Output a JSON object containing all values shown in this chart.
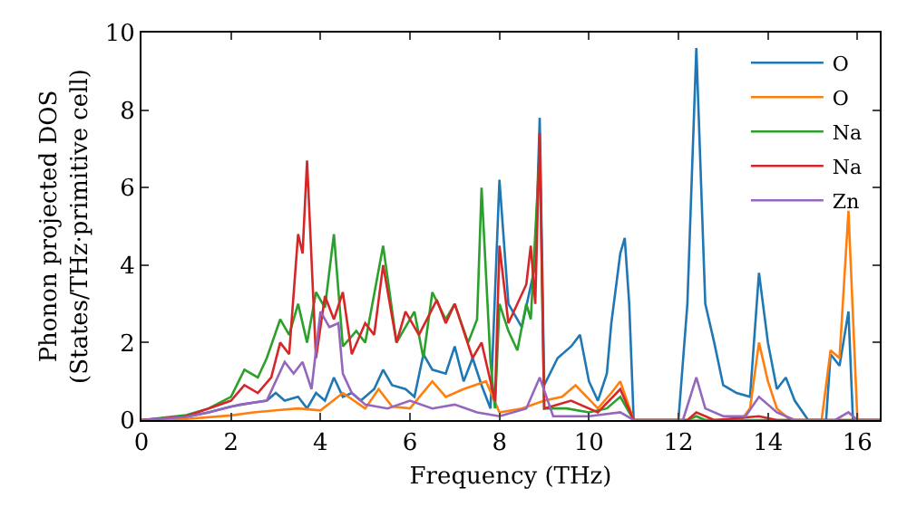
{
  "chart_data": {
    "type": "line",
    "xlabel": "Frequency (THz)",
    "ylabel": "Phonon projected DOS\n(States/THz·primitive cell)",
    "xlim": [
      0,
      16.5
    ],
    "ylim": [
      0,
      10
    ],
    "xticks": [
      0,
      2,
      4,
      6,
      8,
      10,
      12,
      14,
      16
    ],
    "yticks": [
      0,
      2,
      4,
      6,
      8,
      10
    ],
    "grid": false,
    "legend": "top right",
    "series": [
      {
        "name": "O",
        "color": "#1f77b4",
        "x": [
          0,
          0.5,
          1,
          1.5,
          2,
          2.5,
          2.8,
          3.0,
          3.2,
          3.5,
          3.7,
          3.9,
          4.1,
          4.3,
          4.5,
          4.7,
          4.9,
          5.2,
          5.4,
          5.6,
          5.9,
          6.1,
          6.3,
          6.5,
          6.8,
          7.0,
          7.2,
          7.4,
          7.6,
          7.8,
          8.0,
          8.2,
          8.5,
          8.8,
          8.9,
          9.0,
          9.3,
          9.6,
          9.8,
          10.0,
          10.2,
          10.4,
          10.5,
          10.7,
          10.8,
          10.9,
          11.0,
          12.0,
          12.2,
          12.4,
          12.6,
          12.8,
          13.0,
          13.3,
          13.6,
          13.8,
          14.0,
          14.2,
          14.4,
          14.6,
          14.9,
          15.3,
          15.4,
          15.6,
          15.8,
          15.9,
          16.5
        ],
        "values": [
          0,
          0.02,
          0.08,
          0.2,
          0.35,
          0.45,
          0.5,
          0.7,
          0.5,
          0.6,
          0.3,
          0.7,
          0.5,
          1.1,
          0.6,
          0.7,
          0.5,
          0.8,
          1.3,
          0.9,
          0.8,
          0.6,
          1.7,
          1.3,
          1.2,
          1.9,
          1.0,
          1.6,
          0.9,
          0.3,
          6.2,
          3.0,
          2.4,
          4.0,
          7.8,
          0.9,
          1.6,
          1.9,
          2.2,
          1.0,
          0.5,
          1.2,
          2.5,
          4.3,
          4.7,
          3.0,
          0,
          0,
          3.0,
          9.6,
          3.0,
          2.0,
          0.9,
          0.7,
          0.6,
          3.8,
          2.0,
          0.8,
          1.1,
          0.5,
          0,
          0,
          1.7,
          1.4,
          2.8,
          0,
          0
        ]
      },
      {
        "name": "O",
        "color": "#ff7f0e",
        "x": [
          0,
          1,
          2,
          2.5,
          3.0,
          3.5,
          4.0,
          4.5,
          5.0,
          5.3,
          5.6,
          6.0,
          6.5,
          6.8,
          7.2,
          7.7,
          8.0,
          8.5,
          9.0,
          9.4,
          9.7,
          10.2,
          10.5,
          10.7,
          11.0,
          13.4,
          13.6,
          13.8,
          14.0,
          14.2,
          14.5,
          15.2,
          15.4,
          15.6,
          15.8,
          16.0,
          16.5
        ],
        "values": [
          0,
          0.03,
          0.12,
          0.2,
          0.25,
          0.3,
          0.25,
          0.7,
          0.3,
          0.8,
          0.35,
          0.3,
          1.0,
          0.6,
          0.8,
          1.0,
          0.2,
          0.3,
          0.5,
          0.6,
          0.9,
          0.3,
          0.7,
          1.0,
          0,
          0,
          0.3,
          2.0,
          1.0,
          0.3,
          0,
          0,
          1.8,
          1.6,
          5.4,
          0,
          0
        ]
      },
      {
        "name": "Na",
        "color": "#2ca02c",
        "x": [
          0,
          1,
          1.5,
          2.0,
          2.3,
          2.6,
          2.8,
          3.1,
          3.3,
          3.5,
          3.7,
          3.9,
          4.1,
          4.3,
          4.5,
          4.8,
          5.0,
          5.4,
          5.7,
          6.1,
          6.3,
          6.5,
          6.8,
          7.0,
          7.3,
          7.5,
          7.6,
          7.8,
          7.9,
          8.0,
          8.2,
          8.4,
          8.6,
          8.7,
          8.9,
          9.0,
          9.5,
          10.0,
          10.4,
          10.7,
          11.0,
          12.2,
          12.4,
          12.6,
          16.5
        ],
        "values": [
          0,
          0.13,
          0.3,
          0.6,
          1.3,
          1.1,
          1.6,
          2.6,
          2.2,
          3.0,
          2.0,
          3.3,
          2.9,
          4.8,
          1.9,
          2.3,
          2.0,
          4.5,
          2.0,
          2.8,
          1.6,
          3.3,
          2.6,
          3.0,
          2.0,
          2.6,
          6.0,
          1.5,
          0.3,
          3.0,
          2.3,
          1.8,
          3.0,
          2.6,
          7.0,
          0.3,
          0.3,
          0.2,
          0.3,
          0.6,
          0,
          0,
          0.1,
          0,
          0
        ]
      },
      {
        "name": "Na",
        "color": "#d62728",
        "x": [
          0,
          1,
          1.5,
          2.0,
          2.3,
          2.6,
          2.9,
          3.1,
          3.3,
          3.5,
          3.6,
          3.7,
          3.9,
          4.1,
          4.3,
          4.5,
          4.7,
          5.0,
          5.2,
          5.4,
          5.7,
          5.9,
          6.2,
          6.6,
          6.8,
          7.0,
          7.4,
          7.6,
          7.8,
          7.9,
          8.0,
          8.2,
          8.6,
          8.7,
          8.8,
          8.9,
          9.0,
          9.6,
          10.2,
          10.7,
          11.0,
          12.2,
          12.4,
          12.8,
          13.8,
          14.2,
          16.5
        ],
        "values": [
          0,
          0.1,
          0.3,
          0.5,
          0.9,
          0.7,
          1.1,
          2.0,
          1.7,
          4.8,
          4.3,
          6.7,
          1.6,
          3.2,
          2.6,
          3.3,
          1.7,
          2.5,
          2.2,
          4.0,
          2.0,
          2.8,
          2.2,
          3.1,
          2.5,
          3.0,
          1.6,
          2.0,
          1.0,
          0.5,
          4.5,
          2.5,
          3.5,
          4.5,
          3.0,
          7.4,
          0.3,
          0.5,
          0.2,
          0.8,
          0,
          0,
          0.2,
          0,
          0.1,
          0,
          0
        ]
      },
      {
        "name": "Zn",
        "color": "#9467bd",
        "x": [
          0,
          1,
          1.5,
          2.2,
          2.8,
          3.2,
          3.4,
          3.6,
          3.8,
          4.0,
          4.2,
          4.4,
          4.5,
          4.7,
          5.0,
          5.5,
          6.0,
          6.5,
          7.0,
          7.5,
          8.0,
          8.3,
          8.6,
          8.9,
          9.2,
          10.0,
          10.7,
          11.0,
          12.1,
          12.4,
          12.6,
          13.0,
          13.5,
          13.8,
          14.2,
          14.6,
          15.5,
          15.8,
          16.0,
          16.5
        ],
        "values": [
          0,
          0.08,
          0.2,
          0.4,
          0.5,
          1.5,
          1.2,
          1.5,
          0.8,
          2.8,
          2.4,
          2.5,
          1.2,
          0.7,
          0.4,
          0.3,
          0.5,
          0.3,
          0.4,
          0.2,
          0.1,
          0.2,
          0.3,
          1.1,
          0.1,
          0.1,
          0.2,
          0,
          0,
          1.1,
          0.3,
          0.1,
          0.1,
          0.6,
          0.2,
          0,
          0,
          0.2,
          0,
          0
        ]
      }
    ]
  }
}
